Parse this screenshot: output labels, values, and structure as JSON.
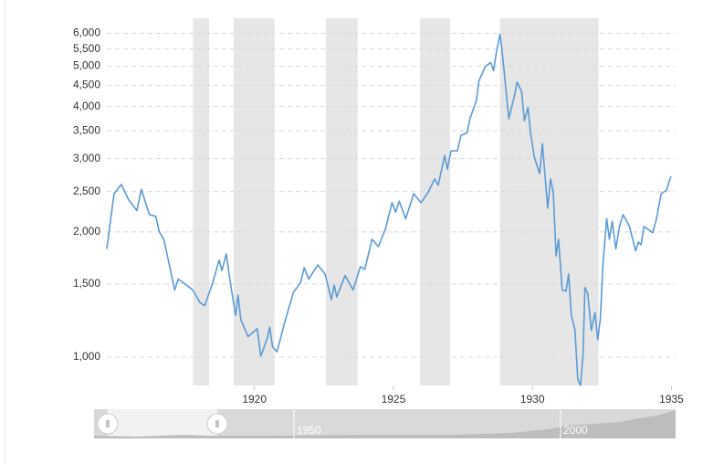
{
  "chart_data": {
    "type": "line",
    "log_scale": true,
    "grid": true,
    "xlim": [
      1914.69,
      1935.15
    ],
    "xticks": [
      1920,
      1925,
      1930,
      1935
    ],
    "ylim": [
      855,
      6520
    ],
    "yticks": [
      {
        "value": 1000,
        "label": "1,000"
      },
      {
        "value": 1500,
        "label": "1,500"
      },
      {
        "value": 2000,
        "label": "2,000"
      },
      {
        "value": 2500,
        "label": "2,500"
      },
      {
        "value": 3000,
        "label": "3,000"
      },
      {
        "value": 3500,
        "label": "3,500"
      },
      {
        "value": 4000,
        "label": "4,000"
      },
      {
        "value": 4500,
        "label": "4,500"
      },
      {
        "value": 5000,
        "label": "5,000"
      },
      {
        "value": 5500,
        "label": "5,500"
      },
      {
        "value": 6000,
        "label": "6,000"
      }
    ],
    "shaded_ranges": [
      [
        1917.79,
        1918.37
      ],
      [
        1919.25,
        1920.72
      ],
      [
        1922.57,
        1923.71
      ],
      [
        1925.96,
        1927.04
      ],
      [
        1928.83,
        1932.38
      ]
    ],
    "shade_color": "#e6e6e6",
    "x": [
      1914.69,
      1914.95,
      1915.21,
      1915.47,
      1915.77,
      1915.93,
      1916.22,
      1916.45,
      1916.58,
      1916.74,
      1916.94,
      1917.13,
      1917.26,
      1917.56,
      1917.78,
      1918.05,
      1918.21,
      1918.5,
      1918.73,
      1918.83,
      1918.99,
      1919.12,
      1919.32,
      1919.41,
      1919.51,
      1919.77,
      1920.1,
      1920.23,
      1920.46,
      1920.55,
      1920.65,
      1920.81,
      1921.07,
      1921.4,
      1921.66,
      1921.79,
      1921.95,
      1922.28,
      1922.54,
      1922.77,
      1922.87,
      1922.96,
      1923.26,
      1923.55,
      1923.81,
      1923.97,
      1924.23,
      1924.46,
      1924.72,
      1924.95,
      1925.08,
      1925.21,
      1925.44,
      1925.73,
      1925.99,
      1926.25,
      1926.48,
      1926.61,
      1926.84,
      1926.94,
      1927.07,
      1927.3,
      1927.43,
      1927.65,
      1927.75,
      1927.98,
      1928.08,
      1928.31,
      1928.5,
      1928.6,
      1928.7,
      1928.83,
      1928.89,
      1928.99,
      1929.15,
      1929.35,
      1929.45,
      1929.61,
      1929.71,
      1929.84,
      1929.93,
      1930.07,
      1930.26,
      1930.36,
      1930.55,
      1930.65,
      1930.75,
      1930.85,
      1930.94,
      1931.07,
      1931.21,
      1931.3,
      1931.4,
      1931.53,
      1931.63,
      1931.73,
      1931.82,
      1931.89,
      1931.99,
      1932.12,
      1932.25,
      1932.35,
      1932.44,
      1932.54,
      1932.67,
      1932.77,
      1932.87,
      1933.0,
      1933.13,
      1933.26,
      1933.49,
      1933.71,
      1933.81,
      1933.91,
      1934.01,
      1934.33,
      1934.46,
      1934.63,
      1934.82,
      1934.98
    ],
    "series": [
      {
        "color": "#5b9bd5",
        "values": [
          1820,
          2470,
          2600,
          2390,
          2250,
          2530,
          2200,
          2180,
          2000,
          1920,
          1665,
          1450,
          1540,
          1490,
          1450,
          1350,
          1330,
          1510,
          1710,
          1615,
          1770,
          1530,
          1260,
          1410,
          1230,
          1120,
          1170,
          1005,
          1110,
          1180,
          1060,
          1030,
          1200,
          1430,
          1510,
          1640,
          1540,
          1665,
          1585,
          1375,
          1490,
          1395,
          1570,
          1450,
          1650,
          1625,
          1920,
          1842,
          2040,
          2350,
          2230,
          2370,
          2150,
          2470,
          2350,
          2490,
          2680,
          2590,
          3050,
          2830,
          3130,
          3130,
          3410,
          3460,
          3740,
          4130,
          4620,
          5000,
          5100,
          4880,
          5380,
          5970,
          5590,
          4810,
          3740,
          4240,
          4580,
          4350,
          3700,
          3980,
          3460,
          3020,
          2760,
          3260,
          2280,
          2680,
          2490,
          1750,
          1920,
          1450,
          1440,
          1585,
          1260,
          1160,
          886,
          855,
          1015,
          1470,
          1420,
          1160,
          1280,
          1100,
          1230,
          1680,
          2150,
          1920,
          2120,
          1820,
          2060,
          2200,
          2060,
          1800,
          1890,
          1860,
          2060,
          1990,
          2150,
          2470,
          2520,
          2720
        ]
      }
    ]
  },
  "navigator": {
    "labels": [
      "1950",
      "2000"
    ]
  }
}
